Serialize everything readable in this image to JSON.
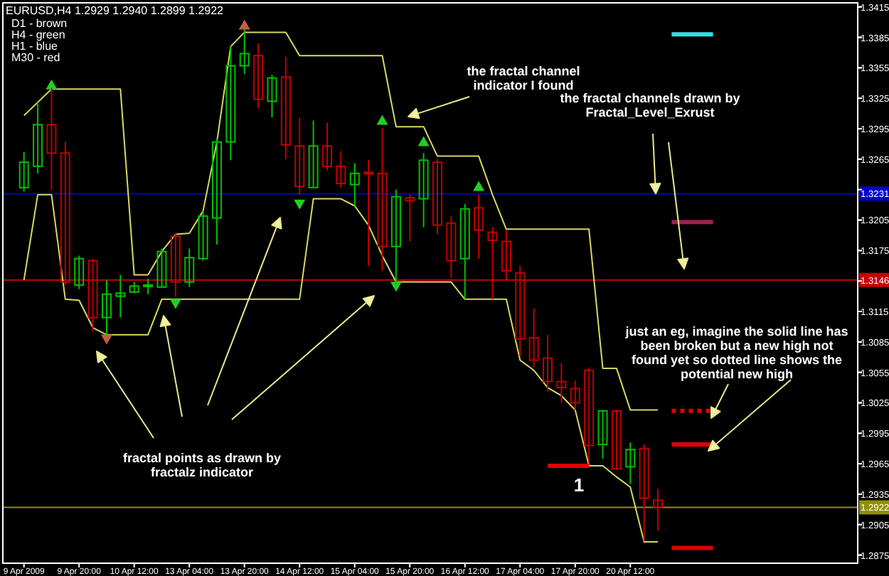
{
  "chart_data": {
    "type": "candlestick",
    "title": "EURUSD,H4  1.2929 1.2940 1.2899 1.2922",
    "categories": [
      "9 Apr 2009",
      null,
      null,
      null,
      "9 Apr 20:00",
      null,
      null,
      null,
      "10 Apr 12:00",
      null,
      null,
      null,
      "13 Apr 04:00",
      null,
      null,
      null,
      "13 Apr 20:00",
      null,
      null,
      null,
      "14 Apr 12:00",
      null,
      null,
      null,
      "15 Apr 04:00",
      null,
      null,
      null,
      "15 Apr 20:00",
      null,
      null,
      null,
      "16 Apr 12:00",
      null,
      null,
      null,
      "17 Apr 04:00",
      null,
      null,
      null,
      "17 Apr 20:00",
      null,
      null,
      null,
      "20 Apr 12:00",
      null,
      null,
      null,
      null,
      null,
      null,
      null,
      null,
      null,
      null,
      null,
      null,
      null,
      null,
      null,
      null
    ],
    "ohlc": [
      [
        1.3237,
        1.3272,
        1.3233,
        1.3262
      ],
      [
        1.3258,
        1.3321,
        1.3251,
        1.3299
      ],
      [
        1.3299,
        1.3335,
        1.3235,
        1.3271
      ],
      [
        1.3271,
        1.3282,
        1.3141,
        1.3144
      ],
      [
        1.3141,
        1.317,
        1.3137,
        1.3167
      ],
      [
        1.3165,
        1.3167,
        1.3095,
        1.3109
      ],
      [
        1.3109,
        1.3146,
        1.3092,
        1.3132
      ],
      [
        1.313,
        1.3151,
        1.3109,
        1.3133
      ],
      [
        1.3134,
        1.3144,
        1.3133,
        1.314
      ],
      [
        1.314,
        1.3147,
        1.3132,
        1.3141
      ],
      [
        1.3139,
        1.3177,
        1.3139,
        1.3174
      ],
      [
        1.3189,
        1.3192,
        1.313,
        1.3144
      ],
      [
        1.3144,
        1.3177,
        1.3139,
        1.3168
      ],
      [
        1.3167,
        1.3214,
        1.3165,
        1.3209
      ],
      [
        1.3207,
        1.3286,
        1.3181,
        1.3282
      ],
      [
        1.3282,
        1.3377,
        1.3264,
        1.3357
      ],
      [
        1.3357,
        1.3393,
        1.3349,
        1.3369
      ],
      [
        1.3367,
        1.3379,
        1.3315,
        1.3324
      ],
      [
        1.3322,
        1.3348,
        1.3306,
        1.3345
      ],
      [
        1.3346,
        1.3366,
        1.3265,
        1.3279
      ],
      [
        1.3278,
        1.3306,
        1.323,
        1.3238
      ],
      [
        1.3237,
        1.3303,
        1.3237,
        1.3278
      ],
      [
        1.3278,
        1.3301,
        1.3254,
        1.3258
      ],
      [
        1.3258,
        1.3273,
        1.3237,
        1.3241
      ],
      [
        1.324,
        1.3261,
        1.3219,
        1.3251
      ],
      [
        1.3252,
        1.3264,
        1.316,
        1.3251
      ],
      [
        1.3251,
        1.3296,
        1.3155,
        1.3179
      ],
      [
        1.3179,
        1.3235,
        1.3141,
        1.3228
      ],
      [
        1.3227,
        1.323,
        1.3184,
        1.3224
      ],
      [
        1.3226,
        1.3271,
        1.3198,
        1.3264
      ],
      [
        1.3262,
        1.3265,
        1.3191,
        1.32
      ],
      [
        1.3202,
        1.3209,
        1.3148,
        1.3165
      ],
      [
        1.3167,
        1.3221,
        1.3127,
        1.3216
      ],
      [
        1.3217,
        1.323,
        1.3167,
        1.3195
      ],
      [
        1.3193,
        1.3198,
        1.3127,
        1.3185
      ],
      [
        1.3184,
        1.3195,
        1.3146,
        1.3155
      ],
      [
        1.3153,
        1.316,
        1.3071,
        1.3088
      ],
      [
        1.3089,
        1.3118,
        1.306,
        1.3067
      ],
      [
        1.3069,
        1.3092,
        1.3036,
        1.3046
      ],
      [
        1.3046,
        1.3064,
        1.3025,
        1.304
      ],
      [
        1.3039,
        1.3047,
        1.3018,
        1.3025
      ],
      [
        1.3057,
        1.306,
        1.2966,
        1.2983
      ],
      [
        1.2984,
        1.3018,
        1.297,
        1.3017
      ],
      [
        1.3017,
        1.3018,
        1.2959,
        1.296
      ],
      [
        1.2962,
        1.2986,
        1.2945,
        1.2979
      ],
      [
        1.298,
        1.2984,
        1.2889,
        1.2931
      ],
      [
        1.2929,
        1.294,
        1.2899,
        1.2922
      ],
      null,
      null,
      null,
      null,
      null,
      null,
      null,
      null,
      null,
      null,
      null,
      null,
      null,
      null
    ],
    "colors": [
      "#00c000",
      "#00c000",
      "#c00000",
      "#c00000",
      "#00c000",
      "#c00000",
      "#00c000",
      "#00c000",
      "#00c000",
      "#00c000",
      "#00c000",
      "#c00000",
      "#00c000",
      "#00c000",
      "#00c000",
      "#00c000",
      "#00c000",
      "#c00000",
      "#00c000",
      "#c00000",
      "#c00000",
      "#00c000",
      "#c00000",
      "#c00000",
      "#00c000",
      "#c00000",
      "#c00000",
      "#00c000",
      "#c00000",
      "#00c000",
      "#c00000",
      "#c00000",
      "#00c000",
      "#c00000",
      "#c00000",
      "#c00000",
      "#c00000",
      "#c00000",
      "#c00000",
      "#c00000",
      "#c00000",
      "#c00000",
      "#00c000",
      "#c00000",
      "#00c000",
      "#c00000",
      "#c00000",
      null,
      null,
      null,
      null,
      null,
      null,
      null,
      null,
      null,
      null,
      null,
      null,
      null,
      null
    ],
    "series": [
      {
        "type": "line",
        "color": "#d8d860",
        "values": [
          1.3308,
          1.3321,
          1.3334,
          1.3334,
          1.3334,
          1.3334,
          1.3334,
          1.3334,
          1.3151,
          1.3151,
          1.3174,
          1.3191,
          1.3192,
          1.3214,
          1.3282,
          1.3376,
          1.339,
          1.339,
          1.339,
          1.339,
          1.3367,
          1.3367,
          1.3367,
          1.3367,
          1.3367,
          1.3367,
          1.3367,
          1.3297,
          1.3297,
          1.3297,
          1.3268,
          1.3268,
          1.3268,
          1.3268,
          1.323,
          1.3196,
          1.3196,
          1.3196,
          1.3196,
          1.3196,
          1.3196,
          1.3196,
          1.3059,
          1.3059,
          1.3018,
          1.3018,
          1.3018,
          null,
          null,
          null,
          null,
          null,
          null,
          null,
          null,
          null,
          null,
          null,
          null,
          null,
          null
        ]
      },
      {
        "type": "line",
        "color": "#d8d860",
        "values": [
          1.3146,
          1.323,
          1.323,
          1.3127,
          1.3126,
          1.3099,
          1.3092,
          1.3092,
          1.3092,
          1.3092,
          1.3127,
          1.3127,
          1.3127,
          1.3127,
          1.3127,
          1.3127,
          1.3127,
          1.3127,
          1.3127,
          1.3127,
          1.3127,
          1.3226,
          1.3226,
          1.3226,
          1.3219,
          1.32,
          1.317,
          1.3144,
          1.3144,
          1.3144,
          1.3144,
          1.3144,
          1.3127,
          1.3127,
          1.3127,
          1.3127,
          1.3067,
          1.3057,
          1.304,
          1.3032,
          1.3018,
          1.2963,
          1.2963,
          1.2952,
          1.2942,
          1.2888,
          1.2888,
          null,
          null,
          null,
          null,
          null,
          null,
          null,
          null,
          null,
          null,
          null,
          null,
          null,
          null
        ]
      },
      {
        "type": "scatter",
        "marker": "triangle",
        "values": [
          null,
          null,
          1.3338,
          null,
          null,
          null,
          null,
          null,
          null,
          null,
          null,
          null,
          null,
          null,
          null,
          null,
          1.3397,
          null,
          null,
          null,
          null,
          null,
          null,
          null,
          null,
          null,
          1.3303,
          null,
          null,
          1.3282,
          null,
          null,
          null,
          1.3238,
          null,
          null,
          null,
          null,
          null,
          null,
          null,
          null,
          null,
          null,
          null,
          null,
          null,
          null,
          null,
          null,
          null,
          null,
          null,
          null,
          null,
          null,
          null,
          null,
          null,
          null,
          null
        ],
        "colors": [
          null,
          null,
          "#20d020",
          null,
          null,
          null,
          null,
          null,
          null,
          null,
          null,
          null,
          null,
          null,
          null,
          null,
          "#c06040",
          null,
          null,
          null,
          null,
          null,
          null,
          null,
          null,
          null,
          "#20d020",
          null,
          null,
          "#20d020",
          null,
          null,
          null,
          "#20d020",
          null,
          null,
          null,
          null,
          null,
          null,
          null,
          null,
          null,
          null,
          null,
          null,
          null,
          null,
          null,
          null,
          null,
          null,
          null,
          null,
          null,
          null,
          null,
          null,
          null,
          null,
          null
        ]
      },
      {
        "type": "scatter",
        "marker": "triangle",
        "values": [
          null,
          null,
          null,
          null,
          null,
          null,
          1.3088,
          null,
          null,
          null,
          null,
          1.3123,
          null,
          null,
          null,
          null,
          null,
          null,
          null,
          null,
          1.3221,
          null,
          null,
          null,
          null,
          null,
          null,
          1.314,
          null,
          null,
          null,
          null,
          null,
          null,
          null,
          null,
          null,
          null,
          null,
          null,
          null,
          null,
          null,
          null,
          null,
          null,
          null,
          null,
          null,
          null,
          null,
          null,
          null,
          null,
          null,
          null,
          null,
          null,
          null,
          null,
          null
        ],
        "colors": [
          null,
          null,
          null,
          null,
          null,
          null,
          "#c06040",
          null,
          null,
          null,
          null,
          "#20d020",
          null,
          null,
          null,
          null,
          null,
          null,
          null,
          null,
          "#20d020",
          null,
          null,
          null,
          null,
          null,
          null,
          "#20d020",
          null,
          null,
          null,
          null,
          null,
          null,
          null,
          null,
          null,
          null,
          null,
          null,
          null,
          null,
          null,
          null,
          null,
          null,
          null,
          null,
          null,
          null,
          null,
          null,
          null,
          null,
          null,
          null,
          null,
          null,
          null,
          null,
          null
        ]
      },
      {
        "type": "line",
        "color": "#30e0e0",
        "values": [
          null,
          null,
          null,
          null,
          null,
          null,
          null,
          null,
          null,
          null,
          null,
          null,
          null,
          null,
          null,
          null,
          null,
          null,
          null,
          null,
          null,
          null,
          null,
          null,
          null,
          null,
          null,
          null,
          null,
          null,
          null,
          null,
          null,
          null,
          null,
          null,
          null,
          null,
          null,
          null,
          null,
          null,
          null,
          null,
          null,
          null,
          null,
          1.3388,
          1.3388,
          1.3388,
          1.3388,
          null,
          null,
          null,
          null,
          null,
          null,
          null,
          null,
          null,
          null
        ]
      },
      {
        "type": "line",
        "color": "#a02050",
        "values": [
          null,
          null,
          null,
          null,
          null,
          null,
          null,
          null,
          null,
          null,
          null,
          null,
          null,
          null,
          null,
          null,
          null,
          null,
          null,
          null,
          null,
          null,
          null,
          null,
          null,
          null,
          null,
          null,
          null,
          null,
          null,
          null,
          null,
          null,
          null,
          null,
          null,
          null,
          null,
          null,
          null,
          null,
          null,
          null,
          null,
          null,
          null,
          1.3203,
          1.3203,
          1.3203,
          1.3203,
          null,
          null,
          null,
          null,
          null,
          null,
          null,
          null,
          null,
          null
        ]
      },
      {
        "type": "line",
        "color": "#e00000",
        "values": [
          null,
          null,
          null,
          null,
          null,
          null,
          null,
          null,
          null,
          null,
          null,
          null,
          null,
          null,
          null,
          null,
          null,
          null,
          null,
          null,
          null,
          null,
          null,
          null,
          null,
          null,
          null,
          null,
          null,
          null,
          null,
          null,
          null,
          null,
          null,
          null,
          null,
          null,
          1.2963,
          1.2963,
          1.2963,
          1.2963,
          null,
          null,
          null,
          null,
          null,
          null,
          null,
          null,
          null,
          null,
          null,
          null,
          null,
          null,
          null,
          null,
          null,
          null,
          null
        ]
      },
      {
        "type": "line",
        "color": "#e00000",
        "line_style": "dotted",
        "values": [
          null,
          null,
          null,
          null,
          null,
          null,
          null,
          null,
          null,
          null,
          null,
          null,
          null,
          null,
          null,
          null,
          null,
          null,
          null,
          null,
          null,
          null,
          null,
          null,
          null,
          null,
          null,
          null,
          null,
          null,
          null,
          null,
          null,
          null,
          null,
          null,
          null,
          null,
          null,
          null,
          null,
          null,
          null,
          null,
          null,
          null,
          null,
          1.3017,
          1.3017,
          1.3017,
          1.3017,
          null,
          null,
          null,
          null,
          null,
          null,
          null,
          null,
          null,
          null
        ]
      },
      {
        "type": "line",
        "color": "#e00000",
        "values": [
          null,
          null,
          null,
          null,
          null,
          null,
          null,
          null,
          null,
          null,
          null,
          null,
          null,
          null,
          null,
          null,
          null,
          null,
          null,
          null,
          null,
          null,
          null,
          null,
          null,
          null,
          null,
          null,
          null,
          null,
          null,
          null,
          null,
          null,
          null,
          null,
          null,
          null,
          null,
          null,
          null,
          null,
          null,
          null,
          null,
          null,
          null,
          1.2984,
          1.2984,
          1.2984,
          1.2984,
          null,
          null,
          null,
          null,
          null,
          null,
          null,
          null,
          null,
          null
        ]
      },
      {
        "type": "line",
        "color": "#e00000",
        "values": [
          null,
          null,
          null,
          null,
          null,
          null,
          null,
          null,
          null,
          null,
          null,
          null,
          null,
          null,
          null,
          null,
          null,
          null,
          null,
          null,
          null,
          null,
          null,
          null,
          null,
          null,
          null,
          null,
          null,
          null,
          null,
          null,
          null,
          null,
          null,
          null,
          null,
          null,
          null,
          null,
          null,
          null,
          null,
          null,
          null,
          null,
          null,
          1.2882,
          1.2882,
          1.2882,
          1.2882,
          null,
          null,
          null,
          null,
          null,
          null,
          null,
          null,
          null,
          null
        ]
      }
    ],
    "ylim": [
      1.2867,
      1.3419
    ],
    "yticks": [
      1.2875,
      1.2905,
      1.2935,
      1.2965,
      1.2995,
      1.3025,
      1.3055,
      1.3085,
      1.3115,
      {
        "value": 1.3145,
        "label": null
      },
      1.3175,
      1.3205,
      {
        "value": 1.3235,
        "label": null
      },
      1.3265,
      1.3295,
      1.3325,
      1.3355,
      1.3385,
      1.3415
    ],
    "ref_lines": [
      {
        "axis": "y",
        "value": 1.3231,
        "label": "1.3231",
        "color": "#0000c8"
      },
      {
        "axis": "y",
        "value": 1.3146,
        "label": "1.3146",
        "color": "#c80000"
      },
      {
        "axis": "y",
        "value": 1.2922,
        "label": "1.2922",
        "color": "#909000"
      }
    ],
    "annotations": [
      "D1 - brown",
      "H4 - green",
      "H1 - blue",
      "M30 - red",
      "the fractal channel\nindicator I found",
      {
        "text": "the fractal channels drawn by\nFractal_Level_Exrust",
        "y": 1.3231
      },
      "just an eg, imagine the solid line has\nbeen broken but a new high not\nfound yet so dotted line shows the\npotential new high",
      "fractal points as drawn by\nfractalz indicator",
      {
        "text": "1",
        "y": 1.2963
      }
    ],
    "grid": false
  }
}
